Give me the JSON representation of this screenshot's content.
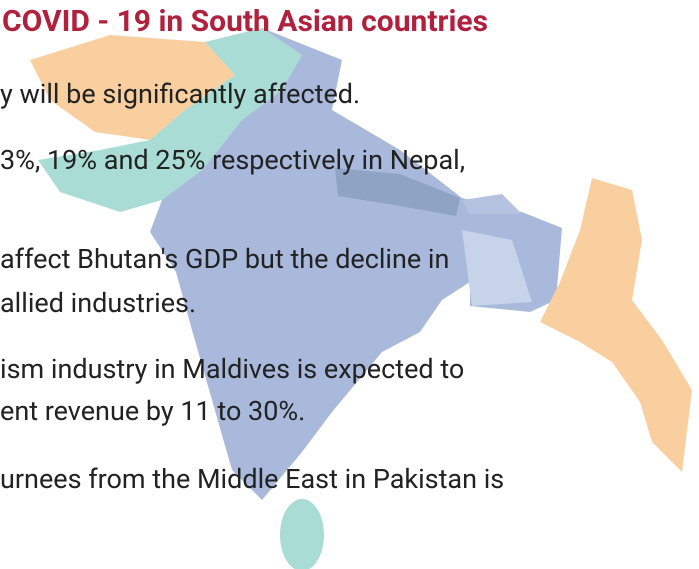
{
  "title": "COVID - 19 in South Asian countries",
  "bullets": [
    [
      "y will be significantly affected."
    ],
    [
      "3%, 19% and 25% respectively in Nepal,"
    ],
    [
      "affect Bhutan's GDP but the decline in",
      "allied industries."
    ],
    [
      "ism industry in Maldives is expected to",
      "ent revenue by 11 to 30%."
    ],
    [
      "urnees from the Middle East in Pakistan is"
    ]
  ]
}
